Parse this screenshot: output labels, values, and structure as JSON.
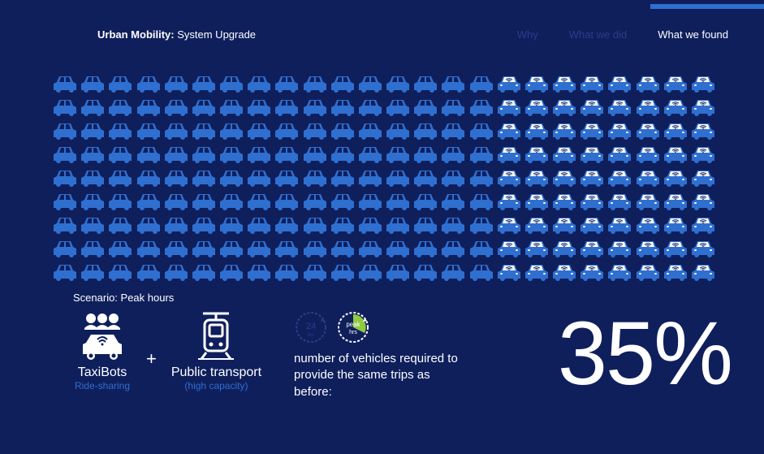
{
  "header": {
    "title_bold": "Urban Mobility:",
    "title_rest": " System Upgrade",
    "tabs": [
      {
        "label": "Why",
        "active": false
      },
      {
        "label": "What we did",
        "active": false
      },
      {
        "label": "What we found",
        "active": true
      }
    ]
  },
  "car_grid": {
    "rows": 9,
    "cols": 24,
    "left_cols": 16,
    "right_cols": 8,
    "left_color": "#2f6fd0",
    "right_body_color": "#2f6fd0",
    "right_roof_color": "#ffffff",
    "right_has_wifi": true,
    "wifi_color": "#0f1f5c"
  },
  "scenario": {
    "label": "Scenario: Peak hours"
  },
  "combo": {
    "item1": {
      "label1": "TaxiBots",
      "label2": "Ride-sharing"
    },
    "plus": "+",
    "item2": {
      "label1": "Public transport",
      "label2": "(high capacity)"
    }
  },
  "clocks": {
    "clock1": {
      "label": "24",
      "sub": "hrs",
      "color": "#2a3d8a",
      "accent": "#2a3d8a"
    },
    "clock2": {
      "label": "peak",
      "sub": "hrs",
      "color": "#ffffff",
      "accent": "#8fc941"
    }
  },
  "mid_text": "number of vehicles required to provide the same trips as before:",
  "big_pct": "35%",
  "colors": {
    "bg": "#0f1f5c",
    "accent_blue": "#2f6fd0",
    "dim": "#2a3d8a",
    "white": "#ffffff"
  }
}
